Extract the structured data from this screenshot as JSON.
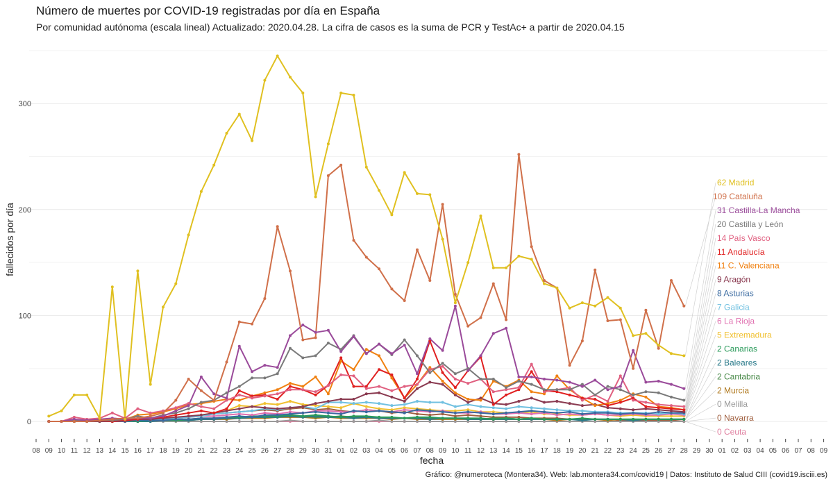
{
  "chart_data": {
    "type": "line",
    "title": "Número de muertes por COVID-19 registradas por día en España",
    "subtitle": "Por comunidad autónoma (escala lineal) Actualizado: 2020.04.28. La cifra de casos es la suma de PCR y TestAc+ a partir de 2020.04.15",
    "xlabel": "fecha",
    "ylabel": "fallecidos por día",
    "caption": "Gráfico: @numeroteca (Montera34). Web: lab.montera34.com/covid19 | Datos: Instituto de Salud CIII (covid19.isciii.es)",
    "ylim": [
      -16,
      350
    ],
    "yticks": [
      "0",
      "100",
      "200",
      "300"
    ],
    "grid": true,
    "legend": "direct-labels-right",
    "x_dates": [
      "2020-03-08",
      "2020-03-09",
      "2020-03-10",
      "2020-03-11",
      "2020-03-12",
      "2020-03-13",
      "2020-03-14",
      "2020-03-15",
      "2020-03-16",
      "2020-03-17",
      "2020-03-18",
      "2020-03-19",
      "2020-03-20",
      "2020-03-21",
      "2020-03-22",
      "2020-03-23",
      "2020-03-24",
      "2020-03-25",
      "2020-03-26",
      "2020-03-27",
      "2020-03-28",
      "2020-03-29",
      "2020-03-30",
      "2020-03-31",
      "2020-04-01",
      "2020-04-02",
      "2020-04-03",
      "2020-04-04",
      "2020-04-05",
      "2020-04-06",
      "2020-04-07",
      "2020-04-08",
      "2020-04-09",
      "2020-04-10",
      "2020-04-11",
      "2020-04-12",
      "2020-04-13",
      "2020-04-14",
      "2020-04-15",
      "2020-04-16",
      "2020-04-17",
      "2020-04-18",
      "2020-04-19",
      "2020-04-20",
      "2020-04-21",
      "2020-04-22",
      "2020-04-23",
      "2020-04-24",
      "2020-04-25",
      "2020-04-26",
      "2020-04-27",
      "2020-04-28",
      "2020-04-29",
      "2020-04-30",
      "2020-05-01",
      "2020-05-02",
      "2020-05-03",
      "2020-05-04",
      "2020-05-05",
      "2020-05-06",
      "2020-05-07",
      "2020-05-08",
      "2020-05-09"
    ],
    "xtick_labels": [
      "08",
      "09",
      "10",
      "11",
      "12",
      "13",
      "14",
      "15",
      "16",
      "17",
      "18",
      "19",
      "20",
      "21",
      "22",
      "23",
      "24",
      "25",
      "26",
      "27",
      "28",
      "29",
      "30",
      "31",
      "01",
      "02",
      "03",
      "04",
      "05",
      "06",
      "07",
      "08",
      "09",
      "10",
      "11",
      "12",
      "13",
      "14",
      "15",
      "16",
      "17",
      "18",
      "19",
      "20",
      "21",
      "22",
      "23",
      "24",
      "25",
      "26",
      "27",
      "28",
      "29",
      "30",
      "01",
      "02",
      "03",
      "04",
      "05",
      "06",
      "07",
      "08",
      "09"
    ],
    "x_start": "2020-03-09",
    "series": [
      {
        "name": "Madrid",
        "label": "62 Madrid",
        "color": "#e0c020",
        "values": [
          5,
          10,
          25,
          25,
          3,
          127,
          2,
          142,
          35,
          108,
          130,
          176,
          217,
          242,
          272,
          290,
          265,
          322,
          345,
          325,
          310,
          212,
          262,
          310,
          308,
          240,
          218,
          195,
          235,
          215,
          214,
          172,
          112,
          150,
          194,
          145,
          145,
          156,
          153,
          130,
          126,
          107,
          112,
          109,
          117,
          107,
          81,
          83,
          72,
          64,
          62
        ]
      },
      {
        "name": "Cataluña",
        "label": "109 Cataluña",
        "color": "#d0704a",
        "values": [
          0,
          0,
          0,
          0,
          1,
          2,
          3,
          3,
          5,
          8,
          20,
          40,
          29,
          20,
          56,
          94,
          92,
          116,
          184,
          142,
          77,
          79,
          232,
          242,
          171,
          155,
          144,
          125,
          114,
          162,
          133,
          205,
          120,
          90,
          98,
          130,
          96,
          252,
          165,
          133,
          126,
          53,
          76,
          143,
          95,
          96,
          50,
          105,
          69,
          133,
          109
        ]
      },
      {
        "name": "Castilla-La Mancha",
        "label": "31 Castilla-La Mancha",
        "color": "#9a4a9a",
        "values": [
          0,
          0,
          2,
          1,
          2,
          3,
          2,
          3,
          3,
          5,
          10,
          15,
          42,
          26,
          22,
          71,
          47,
          53,
          51,
          81,
          91,
          84,
          86,
          66,
          80,
          64,
          73,
          64,
          72,
          45,
          78,
          67,
          109,
          48,
          62,
          83,
          88,
          42,
          42,
          40,
          39,
          37,
          33,
          39,
          30,
          33,
          67,
          37,
          38,
          35,
          31
        ]
      },
      {
        "name": "Castilla y León",
        "label": "20 Castilla y León",
        "color": "#7a7a7a",
        "values": [
          0,
          0,
          1,
          0,
          1,
          1,
          2,
          5,
          3,
          6,
          8,
          12,
          18,
          20,
          27,
          33,
          41,
          41,
          45,
          69,
          60,
          62,
          74,
          68,
          81,
          64,
          73,
          63,
          77,
          62,
          46,
          55,
          45,
          50,
          40,
          40,
          32,
          38,
          35,
          30,
          30,
          30,
          35,
          25,
          33,
          30,
          25,
          28,
          27,
          23,
          20
        ]
      },
      {
        "name": "País Vasco",
        "label": "14 País Vasco",
        "color": "#e06080",
        "values": [
          0,
          0,
          4,
          2,
          3,
          8,
          3,
          12,
          8,
          10,
          13,
          17,
          14,
          12,
          20,
          25,
          22,
          24,
          26,
          30,
          30,
          28,
          34,
          44,
          43,
          31,
          33,
          29,
          33,
          35,
          49,
          52,
          40,
          36,
          40,
          28,
          30,
          32,
          54,
          28,
          30,
          32,
          20,
          25,
          19,
          43,
          20,
          18,
          16,
          15,
          14
        ]
      },
      {
        "name": "Andalucía",
        "label": "11 Andalucía",
        "color": "#e02020",
        "values": [
          0,
          0,
          1,
          0,
          1,
          0,
          1,
          2,
          3,
          4,
          6,
          8,
          10,
          8,
          12,
          29,
          24,
          25,
          21,
          33,
          30,
          25,
          34,
          60,
          33,
          33,
          49,
          44,
          22,
          40,
          76,
          46,
          32,
          48,
          61,
          16,
          25,
          30,
          47,
          29,
          28,
          25,
          22,
          21,
          15,
          18,
          22,
          14,
          13,
          12,
          11
        ]
      },
      {
        "name": "C. Valenciana",
        "label": "11 C. Valenciana",
        "color": "#f08010",
        "values": [
          0,
          0,
          0,
          1,
          2,
          1,
          2,
          6,
          7,
          9,
          12,
          16,
          17,
          19,
          21,
          20,
          24,
          27,
          30,
          36,
          33,
          42,
          26,
          57,
          49,
          68,
          62,
          41,
          22,
          35,
          51,
          38,
          27,
          21,
          20,
          38,
          33,
          39,
          28,
          26,
          43,
          30,
          22,
          15,
          17,
          20,
          26,
          23,
          14,
          13,
          11
        ]
      },
      {
        "name": "Aragón",
        "label": "9 Aragón",
        "color": "#8a3a50",
        "values": [
          0,
          0,
          0,
          0,
          0,
          0,
          1,
          2,
          2,
          3,
          4,
          5,
          6,
          8,
          10,
          12,
          14,
          13,
          12,
          13,
          14,
          17,
          19,
          21,
          21,
          26,
          27,
          23,
          19,
          31,
          37,
          35,
          25,
          18,
          22,
          17,
          16,
          19,
          22,
          18,
          19,
          17,
          15,
          16,
          13,
          12,
          11,
          12,
          11,
          10,
          9
        ]
      },
      {
        "name": "Asturias",
        "label": "8 Asturias",
        "color": "#3a6aa0",
        "values": [
          0,
          0,
          0,
          0,
          0,
          0,
          0,
          1,
          1,
          1,
          2,
          2,
          3,
          3,
          4,
          5,
          4,
          6,
          6,
          7,
          8,
          9,
          8,
          7,
          10,
          9,
          10,
          9,
          8,
          11,
          10,
          9,
          8,
          9,
          8,
          7,
          8,
          9,
          10,
          9,
          8,
          9,
          7,
          8,
          8,
          7,
          8,
          7,
          9,
          8,
          8
        ]
      },
      {
        "name": "Galicia",
        "label": "7 Galicia",
        "color": "#70c0e0",
        "values": [
          0,
          0,
          0,
          0,
          0,
          1,
          1,
          1,
          2,
          2,
          3,
          4,
          5,
          7,
          8,
          9,
          10,
          12,
          11,
          13,
          14,
          12,
          18,
          18,
          17,
          18,
          17,
          15,
          16,
          19,
          18,
          18,
          14,
          16,
          14,
          13,
          12,
          14,
          13,
          12,
          11,
          10,
          10,
          9,
          9,
          8,
          8,
          8,
          7,
          8,
          7
        ]
      },
      {
        "name": "La Rioja",
        "label": "6 La Rioja",
        "color": "#e070b0",
        "values": [
          0,
          0,
          1,
          1,
          1,
          3,
          2,
          3,
          2,
          3,
          3,
          4,
          5,
          5,
          6,
          7,
          6,
          8,
          7,
          9,
          8,
          10,
          10,
          9,
          9,
          11,
          10,
          9,
          11,
          10,
          9,
          10,
          8,
          8,
          9,
          7,
          7,
          8,
          7,
          8,
          6,
          7,
          6,
          7,
          6,
          6,
          7,
          6,
          6,
          7,
          6
        ]
      },
      {
        "name": "Extremadura",
        "label": "5 Extremadura",
        "color": "#f0c030",
        "values": [
          0,
          0,
          0,
          0,
          0,
          0,
          0,
          1,
          1,
          2,
          3,
          4,
          6,
          8,
          10,
          15,
          14,
          17,
          16,
          19,
          16,
          15,
          14,
          13,
          17,
          14,
          12,
          11,
          13,
          12,
          11,
          10,
          10,
          11,
          9,
          9,
          8,
          8,
          9,
          7,
          7,
          6,
          6,
          7,
          6,
          5,
          6,
          5,
          5,
          5,
          5
        ]
      },
      {
        "name": "Canarias",
        "label": "2 Canarias",
        "color": "#2a9a5a",
        "values": [
          0,
          0,
          0,
          0,
          0,
          0,
          0,
          0,
          1,
          1,
          1,
          2,
          3,
          3,
          4,
          4,
          5,
          5,
          5,
          6,
          5,
          6,
          5,
          4,
          5,
          5,
          4,
          4,
          3,
          4,
          4,
          3,
          3,
          3,
          3,
          2,
          3,
          2,
          3,
          2,
          2,
          2,
          3,
          2,
          2,
          2,
          2,
          2,
          2,
          2,
          2
        ]
      },
      {
        "name": "Baleares",
        "label": "2 Baleares",
        "color": "#2a7a8a",
        "values": [
          0,
          0,
          0,
          0,
          0,
          0,
          0,
          0,
          0,
          1,
          1,
          1,
          2,
          2,
          3,
          3,
          4,
          4,
          4,
          5,
          4,
          5,
          4,
          4,
          3,
          4,
          3,
          3,
          3,
          3,
          2,
          3,
          3,
          2,
          2,
          2,
          2,
          2,
          2,
          2,
          2,
          2,
          1,
          2,
          2,
          2,
          1,
          2,
          2,
          2,
          2
        ]
      },
      {
        "name": "Cantabria",
        "label": "2 Cantabria",
        "color": "#4a8a4a",
        "values": [
          0,
          0,
          0,
          0,
          0,
          0,
          0,
          0,
          1,
          1,
          1,
          2,
          2,
          3,
          3,
          3,
          4,
          4,
          5,
          5,
          5,
          4,
          4,
          5,
          4,
          4,
          4,
          3,
          3,
          4,
          3,
          3,
          3,
          3,
          2,
          3,
          3,
          2,
          3,
          2,
          2,
          2,
          2,
          2,
          2,
          2,
          2,
          2,
          2,
          2,
          2
        ]
      },
      {
        "name": "Murcia",
        "label": "2 Murcia",
        "color": "#b07a20",
        "values": [
          0,
          0,
          0,
          0,
          0,
          0,
          0,
          0,
          0,
          1,
          1,
          1,
          2,
          2,
          2,
          3,
          3,
          3,
          4,
          4,
          4,
          3,
          4,
          3,
          3,
          3,
          3,
          2,
          3,
          2,
          2,
          2,
          2,
          2,
          2,
          2,
          2,
          2,
          2,
          2,
          1,
          2,
          2,
          2,
          1,
          2,
          2,
          2,
          2,
          2,
          2
        ]
      },
      {
        "name": "Melilla",
        "label": "0 Melilla",
        "color": "#9a9a9a",
        "values": [
          0,
          0,
          0,
          0,
          0,
          0,
          0,
          0,
          0,
          0,
          0,
          0,
          0,
          0,
          0,
          0,
          0,
          0,
          0,
          1,
          0,
          0,
          0,
          0,
          0,
          0,
          1,
          0,
          0,
          0,
          0,
          0,
          0,
          0,
          0,
          0,
          0,
          0,
          0,
          0,
          0,
          0,
          0,
          0,
          0,
          0,
          0,
          0,
          0,
          0,
          0
        ]
      },
      {
        "name": "Navarra",
        "label": "0 Navarra",
        "color": "#a06040",
        "values": [
          0,
          0,
          0,
          0,
          0,
          0,
          1,
          1,
          1,
          2,
          3,
          4,
          6,
          7,
          8,
          9,
          10,
          11,
          10,
          12,
          13,
          11,
          12,
          10,
          9,
          11,
          10,
          8,
          9,
          7,
          6,
          7,
          5,
          6,
          5,
          4,
          4,
          4,
          3,
          3,
          3,
          2,
          2,
          2,
          2,
          1,
          1,
          1,
          1,
          1,
          0
        ]
      },
      {
        "name": "Ceuta",
        "label": "0 Ceuta",
        "color": "#e080a0",
        "values": [
          0,
          0,
          0,
          0,
          0,
          0,
          0,
          0,
          0,
          0,
          0,
          0,
          0,
          0,
          0,
          0,
          0,
          0,
          0,
          0,
          0,
          0,
          0,
          0,
          0,
          0,
          0,
          0,
          0,
          0,
          0,
          0,
          0,
          0,
          0,
          0,
          0,
          0,
          0,
          0,
          0,
          0,
          0,
          0,
          0,
          0,
          0,
          0,
          0,
          0,
          0
        ]
      }
    ]
  }
}
